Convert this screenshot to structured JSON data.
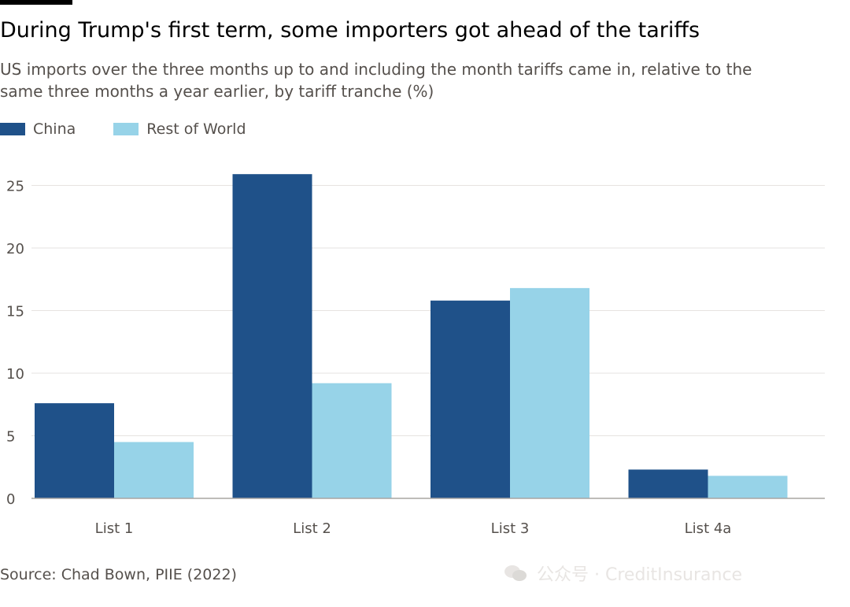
{
  "title": "During Trump's first term, some importers got ahead of the tariffs",
  "subtitle": "US imports over the three months up to and including the month tariffs came in, relative to the same three months a year earlier, by tariff tranche (%)",
  "source": "Source: Chad Bown, PIIE (2022)",
  "watermark": "公众号 · CreditInsurance",
  "colors": {
    "china": "#1f5189",
    "rest_of_world": "#97d3e8",
    "grid": "#e6e3e0",
    "baseline": "#a8a5a2"
  },
  "chart_data": {
    "type": "bar",
    "title": "During Trump's first term, some importers got ahead of the tariffs",
    "subtitle": "US imports over the three months up to and including the month tariffs came in, relative to the same three months a year earlier, by tariff tranche (%)",
    "categories": [
      "List 1",
      "List 2",
      "List 3",
      "List 4a"
    ],
    "series": [
      {
        "name": "China",
        "values": [
          7.6,
          25.9,
          15.8,
          2.3
        ]
      },
      {
        "name": "Rest of World",
        "values": [
          4.5,
          9.2,
          16.8,
          1.8
        ]
      }
    ],
    "yticks": [
      0,
      5,
      10,
      15,
      20,
      25
    ],
    "ylim": [
      0,
      27
    ],
    "xlabel": "",
    "ylabel": "",
    "grid": true,
    "legend": "top-left"
  }
}
